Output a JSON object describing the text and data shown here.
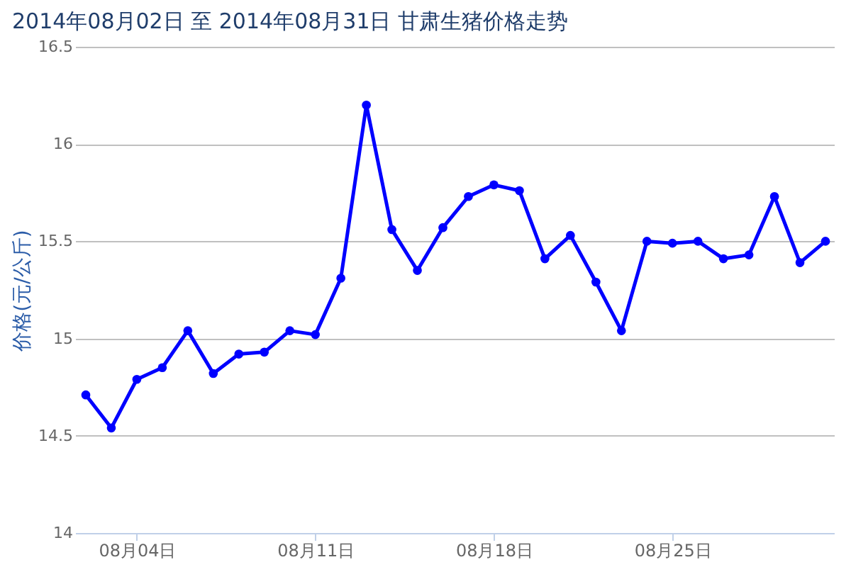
{
  "chart_data": {
    "type": "line",
    "title": "2014年08月02日 至 2014年08月31日 甘肃生猪价格走势",
    "ylabel": "价格(元/公斤)",
    "x": [
      "2014-08-02",
      "2014-08-03",
      "2014-08-04",
      "2014-08-05",
      "2014-08-06",
      "2014-08-07",
      "2014-08-08",
      "2014-08-09",
      "2014-08-10",
      "2014-08-11",
      "2014-08-12",
      "2014-08-13",
      "2014-08-14",
      "2014-08-15",
      "2014-08-16",
      "2014-08-17",
      "2014-08-18",
      "2014-08-19",
      "2014-08-20",
      "2014-08-21",
      "2014-08-22",
      "2014-08-23",
      "2014-08-24",
      "2014-08-25",
      "2014-08-26",
      "2014-08-27",
      "2014-08-28",
      "2014-08-29",
      "2014-08-30",
      "2014-08-31"
    ],
    "series": [
      {
        "color": "#0000ff",
        "values": [
          14.71,
          14.54,
          14.79,
          14.85,
          15.04,
          14.82,
          14.92,
          14.93,
          15.04,
          15.02,
          15.31,
          16.2,
          15.56,
          15.35,
          15.57,
          15.73,
          15.79,
          15.76,
          15.41,
          15.53,
          15.29,
          15.04,
          15.5,
          15.49,
          15.5,
          15.41,
          15.43,
          15.73,
          15.39,
          15.5
        ]
      }
    ],
    "xlim": [
      "2014-08-01T14:00",
      "2014-08-31T08:00"
    ],
    "xticks": [
      {
        "value": "2014-08-04",
        "label": "08月04日"
      },
      {
        "value": "2014-08-11",
        "label": "08月11日"
      },
      {
        "value": "2014-08-18",
        "label": "08月18日"
      },
      {
        "value": "2014-08-25",
        "label": "08月25日"
      }
    ],
    "ylim": [
      14,
      16.5
    ],
    "yticks": [
      14,
      14.5,
      {
        "value": 15,
        "label": "15"
      },
      15.5,
      16,
      16.5
    ],
    "grid": "y",
    "marker": "circle",
    "line_style": "solid"
  }
}
